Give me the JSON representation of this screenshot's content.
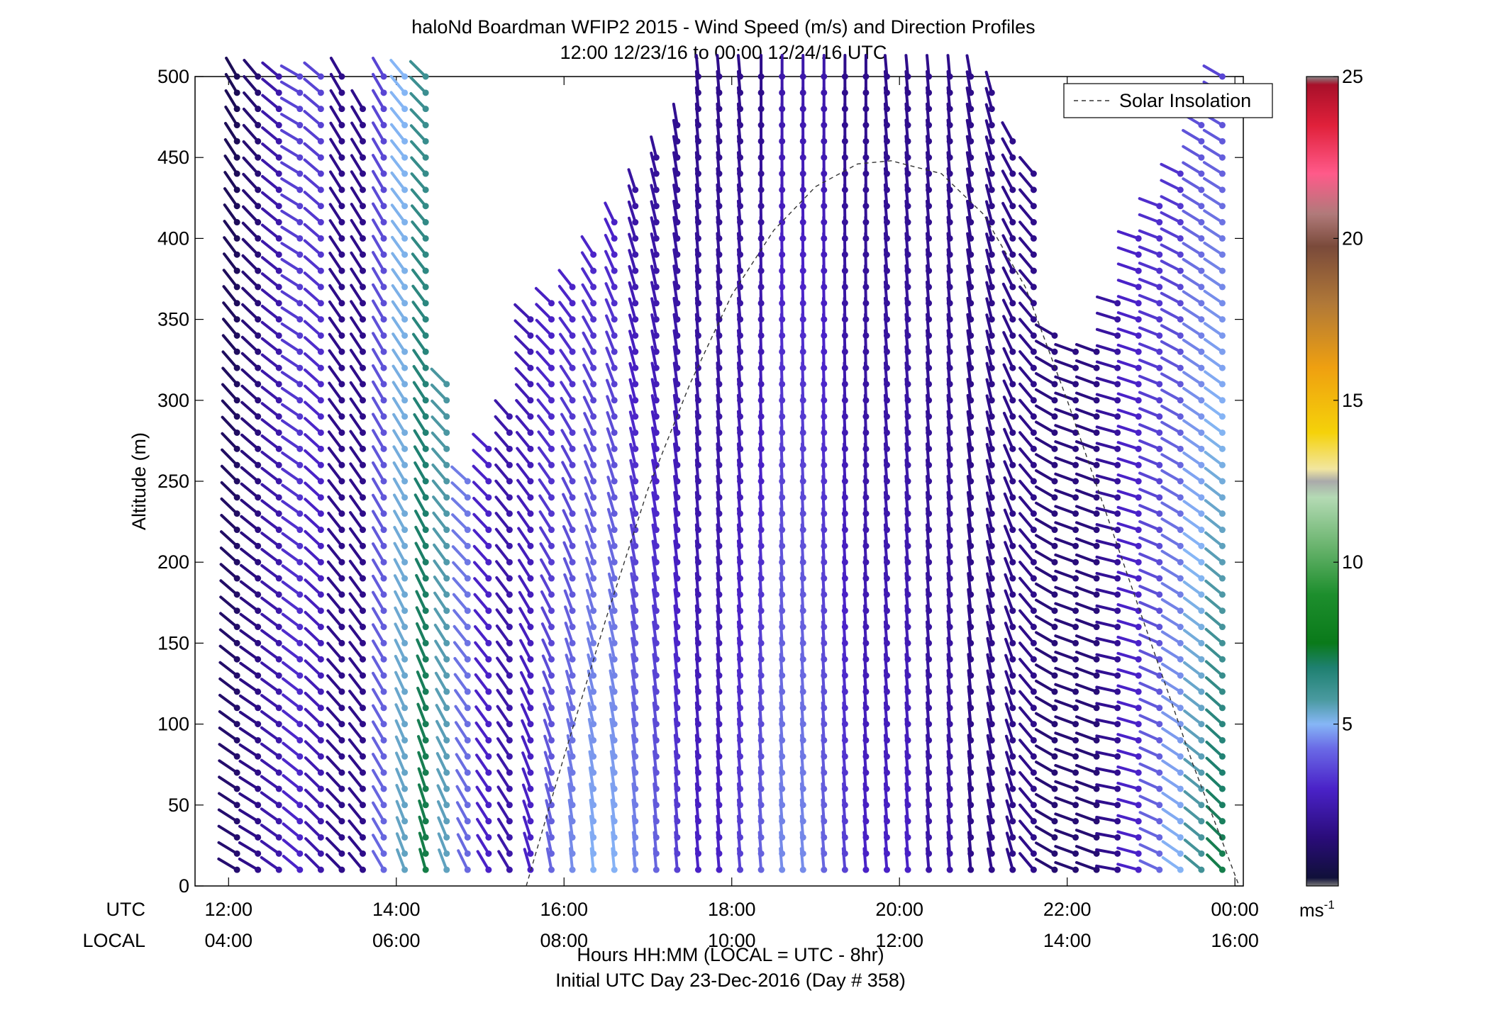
{
  "chart_data": {
    "type": "scatter",
    "title": "haloNd Boardman WFIP2 2015 - Wind Speed (m/s) and Direction Profiles",
    "subtitle": "12:00 12/23/16 to 00:00 12/24/16  UTC",
    "ylabel": "Altitude (m)",
    "xlabel": "Hours HH:MM  (LOCAL = UTC - 8hr)",
    "xlabel2": "Initial UTC Day 23-Dec-2016 (Day # 358)",
    "x_row_labels": [
      "UTC",
      "LOCAL"
    ],
    "xlim": [
      11.6,
      24.1
    ],
    "ylim": [
      0,
      500
    ],
    "x_ticks_utc": [
      "12:00",
      "14:00",
      "16:00",
      "18:00",
      "20:00",
      "22:00",
      "00:00"
    ],
    "x_ticks_local": [
      "04:00",
      "06:00",
      "08:00",
      "10:00",
      "12:00",
      "14:00",
      "16:00"
    ],
    "x_tick_hours": [
      12,
      14,
      16,
      18,
      20,
      22,
      24
    ],
    "y_ticks": [
      0,
      50,
      100,
      150,
      200,
      250,
      300,
      350,
      400,
      450,
      500
    ],
    "colorbar": {
      "range": [
        0,
        25
      ],
      "ticks": [
        5,
        10,
        15,
        20,
        25
      ],
      "unit_label": "ms",
      "unit_exponent": "-1"
    },
    "legend": {
      "position": "top-right",
      "entries": [
        "Solar Insolation"
      ]
    },
    "solar_insolation": {
      "x": [
        15.55,
        16.0,
        16.5,
        17.0,
        17.5,
        18.0,
        18.5,
        19.0,
        19.5,
        19.9,
        20.5,
        21.0,
        21.5,
        22.0,
        22.5,
        23.0,
        23.5,
        24.05
      ],
      "y": [
        0,
        80,
        165,
        245,
        310,
        365,
        405,
        432,
        446,
        448,
        440,
        415,
        370,
        300,
        225,
        150,
        75,
        0
      ]
    },
    "column_profiles": {
      "x": [
        12.1,
        12.35,
        12.6,
        12.85,
        13.1,
        13.35,
        13.6,
        13.85,
        14.1,
        14.35,
        14.6,
        14.85,
        15.1,
        15.35,
        15.6,
        15.85,
        16.1,
        16.35,
        16.6,
        16.85,
        17.1,
        17.35,
        17.6,
        17.85,
        18.1,
        18.35,
        18.6,
        18.85,
        19.1,
        19.35,
        19.6,
        19.85,
        20.1,
        20.35,
        20.6,
        20.85,
        21.1,
        21.35,
        21.6,
        21.85,
        22.1,
        22.35,
        22.6,
        22.85,
        23.1,
        23.35,
        23.6,
        23.85
      ],
      "top": [
        500,
        500,
        500,
        500,
        500,
        500,
        480,
        500,
        500,
        500,
        310,
        250,
        270,
        290,
        350,
        360,
        370,
        390,
        410,
        430,
        450,
        470,
        500,
        500,
        500,
        500,
        500,
        500,
        500,
        500,
        500,
        500,
        500,
        500,
        500,
        500,
        490,
        460,
        440,
        340,
        330,
        330,
        360,
        400,
        420,
        440,
        470,
        500
      ],
      "speed_low": [
        1.5,
        2.0,
        2.5,
        3.0,
        2.5,
        2.0,
        2.0,
        4.0,
        5.5,
        7.0,
        5.5,
        4.0,
        3.0,
        2.5,
        3.0,
        4.0,
        4.5,
        5.0,
        5.0,
        4.5,
        4.0,
        3.5,
        3.0,
        3.0,
        3.5,
        4.0,
        4.5,
        4.5,
        4.0,
        3.5,
        3.0,
        3.0,
        3.0,
        2.5,
        2.5,
        2.0,
        2.0,
        2.0,
        2.0,
        1.5,
        1.5,
        1.5,
        2.0,
        3.0,
        4.0,
        5.0,
        6.0,
        7.0
      ],
      "speed_high": [
        1.0,
        1.5,
        2.5,
        3.5,
        3.5,
        2.0,
        2.0,
        3.5,
        5.0,
        6.0,
        6.0,
        4.5,
        3.0,
        2.5,
        2.5,
        2.5,
        2.5,
        2.5,
        2.5,
        2.0,
        2.0,
        2.0,
        2.0,
        2.0,
        2.0,
        2.0,
        2.5,
        2.5,
        2.5,
        2.0,
        2.0,
        2.0,
        2.0,
        2.0,
        2.0,
        2.0,
        2.0,
        2.0,
        2.0,
        2.0,
        2.0,
        2.0,
        2.5,
        3.0,
        3.0,
        3.0,
        3.5,
        3.5
      ],
      "dir_low": [
        300,
        300,
        305,
        310,
        315,
        315,
        320,
        330,
        340,
        345,
        340,
        335,
        330,
        330,
        345,
        350,
        355,
        355,
        355,
        355,
        355,
        355,
        355,
        355,
        355,
        355,
        355,
        355,
        355,
        355,
        355,
        355,
        355,
        355,
        355,
        355,
        350,
        345,
        320,
        300,
        290,
        290,
        280,
        285,
        295,
        305,
        310,
        315
      ],
      "dir_high": [
        330,
        320,
        310,
        300,
        310,
        330,
        330,
        330,
        320,
        315,
        300,
        290,
        300,
        310,
        300,
        300,
        310,
        320,
        330,
        340,
        345,
        350,
        355,
        355,
        355,
        0,
        0,
        0,
        0,
        0,
        0,
        355,
        355,
        355,
        355,
        350,
        345,
        330,
        320,
        300,
        290,
        290,
        290,
        290,
        290,
        295,
        300,
        300
      ]
    }
  }
}
